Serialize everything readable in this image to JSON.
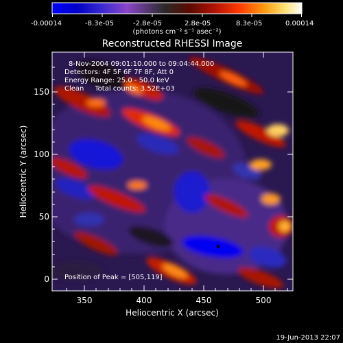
{
  "colorbar": {
    "tick_labels": [
      "-0.00014",
      "-8.3e-05",
      "-2.8e-05",
      "2.8e-05",
      "8.3e-05",
      "0.00014"
    ],
    "units_label": "(photons cm⁻² s⁻¹ asec⁻²)",
    "colors": [
      "#0000ff",
      "#0000c8",
      "#3a2ad0",
      "#8a46c8",
      "#2a2a2a",
      "#5a0a00",
      "#b01200",
      "#ff3a00",
      "#ff9a10",
      "#ffe070",
      "#ffffff"
    ]
  },
  "plot": {
    "title": "Reconstructed RHESSI Image",
    "xlabel": "Heliocentric X (arcsec)",
    "ylabel": "Heliocentric Y (arcsec)",
    "x_ticks": [
      "350",
      "400",
      "450",
      "500"
    ],
    "y_ticks": [
      "0",
      "50",
      "100",
      "150"
    ],
    "info_lines": [
      "8-Nov-2004 09:01:10.000 to 09:04:44.000",
      "Detectors: 4F 5F 6F 7F 8F, Att 0",
      "Energy Range: 25.0 - 50.0 keV",
      "Clean     Total counts: 3.52E+03"
    ],
    "peak_label": "Position of Peak = [505,119]"
  },
  "footer": {
    "timestamp": "19-Jun-2013 22:07"
  }
}
